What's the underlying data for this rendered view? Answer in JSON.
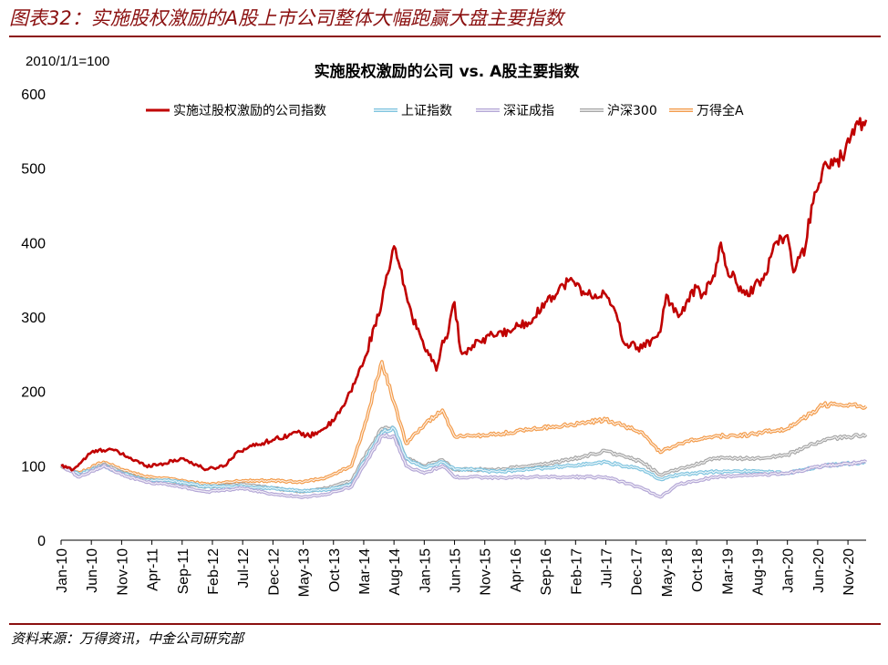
{
  "caption": "图表32：实施股权激励的A股上市公司整体大幅跑赢大盘主要指数",
  "source": "资料来源：万得资讯，中金公司研究部",
  "chart_data": {
    "type": "line",
    "title": "实施股权激励的公司 vs. A股主要指数",
    "base_note": "2010/1/1=100",
    "xlabel": "",
    "ylabel": "",
    "ylim": [
      0,
      600
    ],
    "yticks": [
      0,
      100,
      200,
      300,
      400,
      500,
      600
    ],
    "x_tick_labels": [
      "Jan-10",
      "Jun-10",
      "Nov-10",
      "Apr-11",
      "Sep-11",
      "Feb-12",
      "Jul-12",
      "Dec-12",
      "May-13",
      "Oct-13",
      "Mar-14",
      "Aug-14",
      "Jan-15",
      "Jun-15",
      "Nov-15",
      "Apr-16",
      "Sep-16",
      "Feb-17",
      "Jul-17",
      "Dec-17",
      "May-18",
      "Oct-18",
      "Mar-19",
      "Aug-19",
      "Jan-20",
      "Jun-20",
      "Nov-20"
    ],
    "x_start": "2010-01",
    "x_end": "2021-02",
    "series": [
      {
        "name": "实施过股权激励的公司指数",
        "color": "#c00000",
        "x": [
          0,
          2,
          5,
          8,
          11,
          14,
          17,
          20,
          24,
          27,
          29,
          31,
          35,
          39,
          41,
          43,
          45,
          47,
          50,
          53,
          55,
          58,
          62,
          63,
          64,
          65,
          66,
          67,
          68,
          69,
          70,
          71,
          72,
          75,
          78,
          80,
          84,
          87,
          90,
          92,
          93,
          96,
          99,
          100,
          102,
          105,
          106,
          108,
          109,
          110,
          113,
          116,
          118,
          120,
          121,
          123,
          124,
          126,
          127,
          129,
          130,
          133
        ],
        "values": [
          100,
          95,
          118,
          123,
          112,
          100,
          103,
          110,
          95,
          100,
          118,
          125,
          135,
          145,
          140,
          148,
          160,
          185,
          240,
          320,
          395,
          300,
          228,
          268,
          280,
          320,
          255,
          250,
          262,
          268,
          265,
          280,
          275,
          285,
          298,
          320,
          350,
          330,
          330,
          295,
          265,
          258,
          280,
          330,
          300,
          340,
          330,
          355,
          400,
          365,
          330,
          350,
          400,
          410,
          360,
          395,
          450,
          505,
          500,
          515,
          540,
          565
        ]
      },
      {
        "name": "上证指数",
        "color": "#7fc4df",
        "x": [
          0,
          3,
          7,
          10,
          14,
          18,
          24,
          30,
          35,
          40,
          44,
          48,
          50,
          53,
          55,
          57,
          60,
          63,
          65,
          68,
          72,
          78,
          84,
          90,
          96,
          99,
          102,
          108,
          112,
          116,
          120,
          126,
          133
        ],
        "values": [
          100,
          88,
          100,
          90,
          80,
          80,
          72,
          72,
          70,
          66,
          68,
          75,
          105,
          145,
          150,
          110,
          98,
          105,
          95,
          95,
          92,
          96,
          100,
          105,
          95,
          82,
          88,
          92,
          93,
          92,
          90,
          100,
          105
        ]
      },
      {
        "name": "深证成指",
        "color": "#b4a7d6",
        "x": [
          0,
          3,
          7,
          10,
          14,
          18,
          24,
          30,
          35,
          40,
          44,
          48,
          50,
          53,
          55,
          57,
          60,
          63,
          65,
          68,
          72,
          78,
          84,
          90,
          96,
          99,
          102,
          108,
          112,
          116,
          120,
          126,
          133
        ],
        "values": [
          100,
          85,
          100,
          88,
          78,
          75,
          65,
          70,
          62,
          58,
          62,
          72,
          100,
          140,
          140,
          100,
          90,
          100,
          85,
          85,
          84,
          85,
          85,
          85,
          70,
          58,
          75,
          85,
          87,
          88,
          90,
          100,
          105
        ]
      },
      {
        "name": "沪深300",
        "color": "#a6a6a6",
        "x": [
          0,
          3,
          7,
          10,
          14,
          18,
          24,
          30,
          35,
          40,
          44,
          48,
          50,
          53,
          55,
          57,
          60,
          63,
          65,
          68,
          72,
          78,
          84,
          90,
          96,
          99,
          102,
          108,
          112,
          116,
          120,
          126,
          133
        ],
        "values": [
          100,
          88,
          102,
          92,
          80,
          78,
          72,
          75,
          70,
          65,
          70,
          80,
          110,
          150,
          150,
          110,
          100,
          108,
          95,
          95,
          95,
          100,
          108,
          120,
          105,
          88,
          95,
          110,
          110,
          110,
          115,
          135,
          142
        ]
      },
      {
        "name": "万得全A",
        "color": "#f39c4c",
        "x": [
          0,
          3,
          7,
          10,
          14,
          18,
          24,
          30,
          35,
          40,
          44,
          48,
          50,
          53,
          55,
          57,
          60,
          63,
          65,
          68,
          72,
          78,
          84,
          90,
          96,
          99,
          102,
          108,
          112,
          116,
          120,
          126,
          133
        ],
        "values": [
          100,
          90,
          105,
          95,
          85,
          82,
          75,
          80,
          80,
          78,
          85,
          100,
          150,
          240,
          185,
          130,
          155,
          175,
          140,
          140,
          142,
          150,
          155,
          162,
          145,
          118,
          130,
          140,
          140,
          145,
          150,
          182,
          180
        ]
      }
    ]
  }
}
